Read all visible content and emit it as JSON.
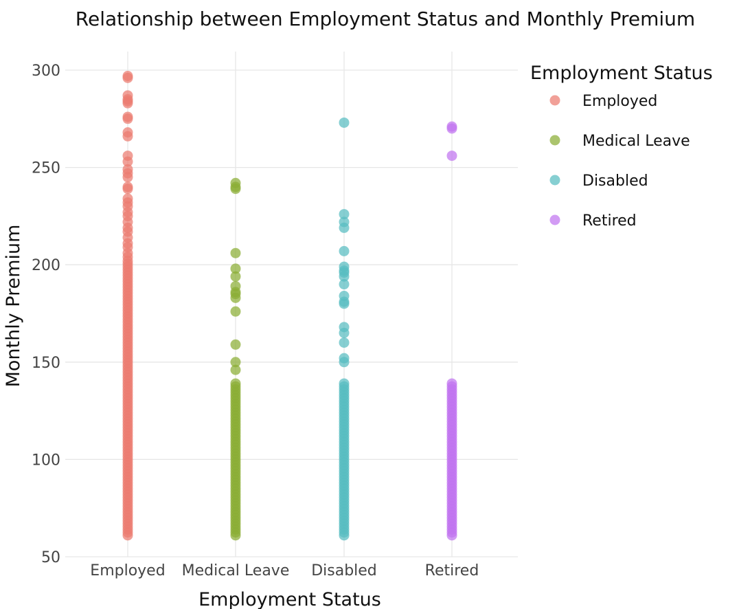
{
  "chart_data": {
    "type": "scatter",
    "title": "Relationship between Employment Status and Monthly Premium",
    "xlabel": "Employment Status",
    "ylabel": "Monthly Premium",
    "categories": [
      "Employed",
      "Medical Leave",
      "Disabled",
      "Retired"
    ],
    "ylim": [
      50,
      305
    ],
    "yticks": [
      50,
      100,
      150,
      200,
      250,
      300
    ],
    "grid": true,
    "legend": {
      "title": "Employment Status",
      "placement": "top-right",
      "items": [
        "Employed",
        "Medical Leave",
        "Disabled",
        "Retired"
      ]
    },
    "series": [
      {
        "name": "Employed",
        "color": "#EC7B70",
        "x": "Employed",
        "range": [
          61,
          202
        ],
        "values": [
          297,
          296,
          287,
          285,
          284,
          283,
          276,
          275,
          268,
          266,
          256,
          253,
          249,
          247,
          245,
          240,
          239,
          234,
          232,
          230,
          227,
          225,
          222,
          219,
          217,
          214,
          211,
          209,
          206,
          204
        ]
      },
      {
        "name": "Medical Leave",
        "color": "#8AAD34",
        "x": "Medical Leave",
        "range": [
          61,
          139
        ],
        "values": [
          242,
          240,
          239,
          206,
          198,
          194,
          189,
          186,
          185,
          183,
          176,
          159,
          150,
          146
        ]
      },
      {
        "name": "Disabled",
        "color": "#58BCC1",
        "x": "Disabled",
        "range": [
          61,
          140
        ],
        "values": [
          273,
          226,
          222,
          219,
          207,
          199,
          197,
          196,
          194,
          190,
          184,
          181,
          180,
          168,
          165,
          160,
          152,
          150
        ]
      },
      {
        "name": "Retired",
        "color": "#C075F0",
        "x": "Retired",
        "range": [
          61,
          139
        ],
        "values": [
          271,
          270,
          256
        ]
      }
    ]
  }
}
